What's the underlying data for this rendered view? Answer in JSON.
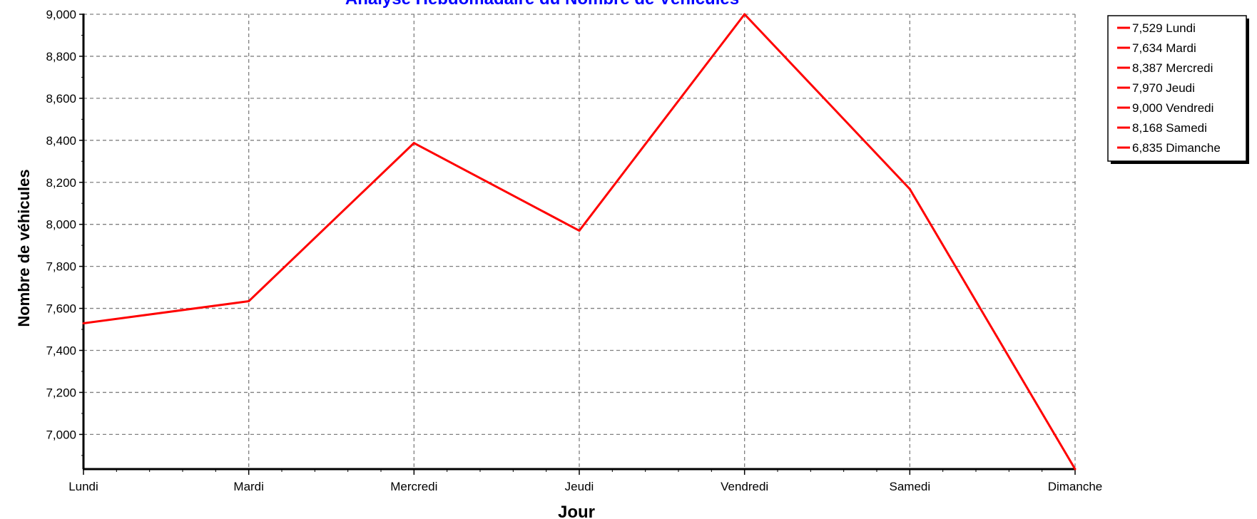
{
  "chart_data": {
    "type": "line",
    "title": "Analyse Hebdomadaire du Nombre de Véhicules",
    "xlabel": "Jour",
    "ylabel": "Nombre de véhicules",
    "categories": [
      "Lundi",
      "Mardi",
      "Mercredi",
      "Jeudi",
      "Vendredi",
      "Samedi",
      "Dimanche"
    ],
    "series": [
      {
        "values": [
          7529,
          7634,
          8387,
          7970,
          9000,
          8168,
          6835
        ]
      }
    ],
    "ylim": [
      6835,
      9000
    ],
    "yticks": [
      7000,
      7200,
      7400,
      7600,
      7800,
      8000,
      8200,
      8400,
      8600,
      8800,
      9000
    ],
    "ytick_labels": [
      "7,000",
      "7,200",
      "7,400",
      "7,600",
      "7,800",
      "8,000",
      "8,200",
      "8,400",
      "8,600",
      "8,800",
      "9,000"
    ],
    "grid": true,
    "legend_position": "right",
    "legend": [
      "7,529 Lundi",
      "7,634 Mardi",
      "8,387 Mercredi",
      "7,970 Jeudi",
      "9,000 Vendredi",
      "8,168 Samedi",
      "6,835 Dimanche"
    ]
  },
  "colors": {
    "line": "#ff0000",
    "title": "#0000ff",
    "grid": "#808080",
    "axis": "#000000"
  }
}
